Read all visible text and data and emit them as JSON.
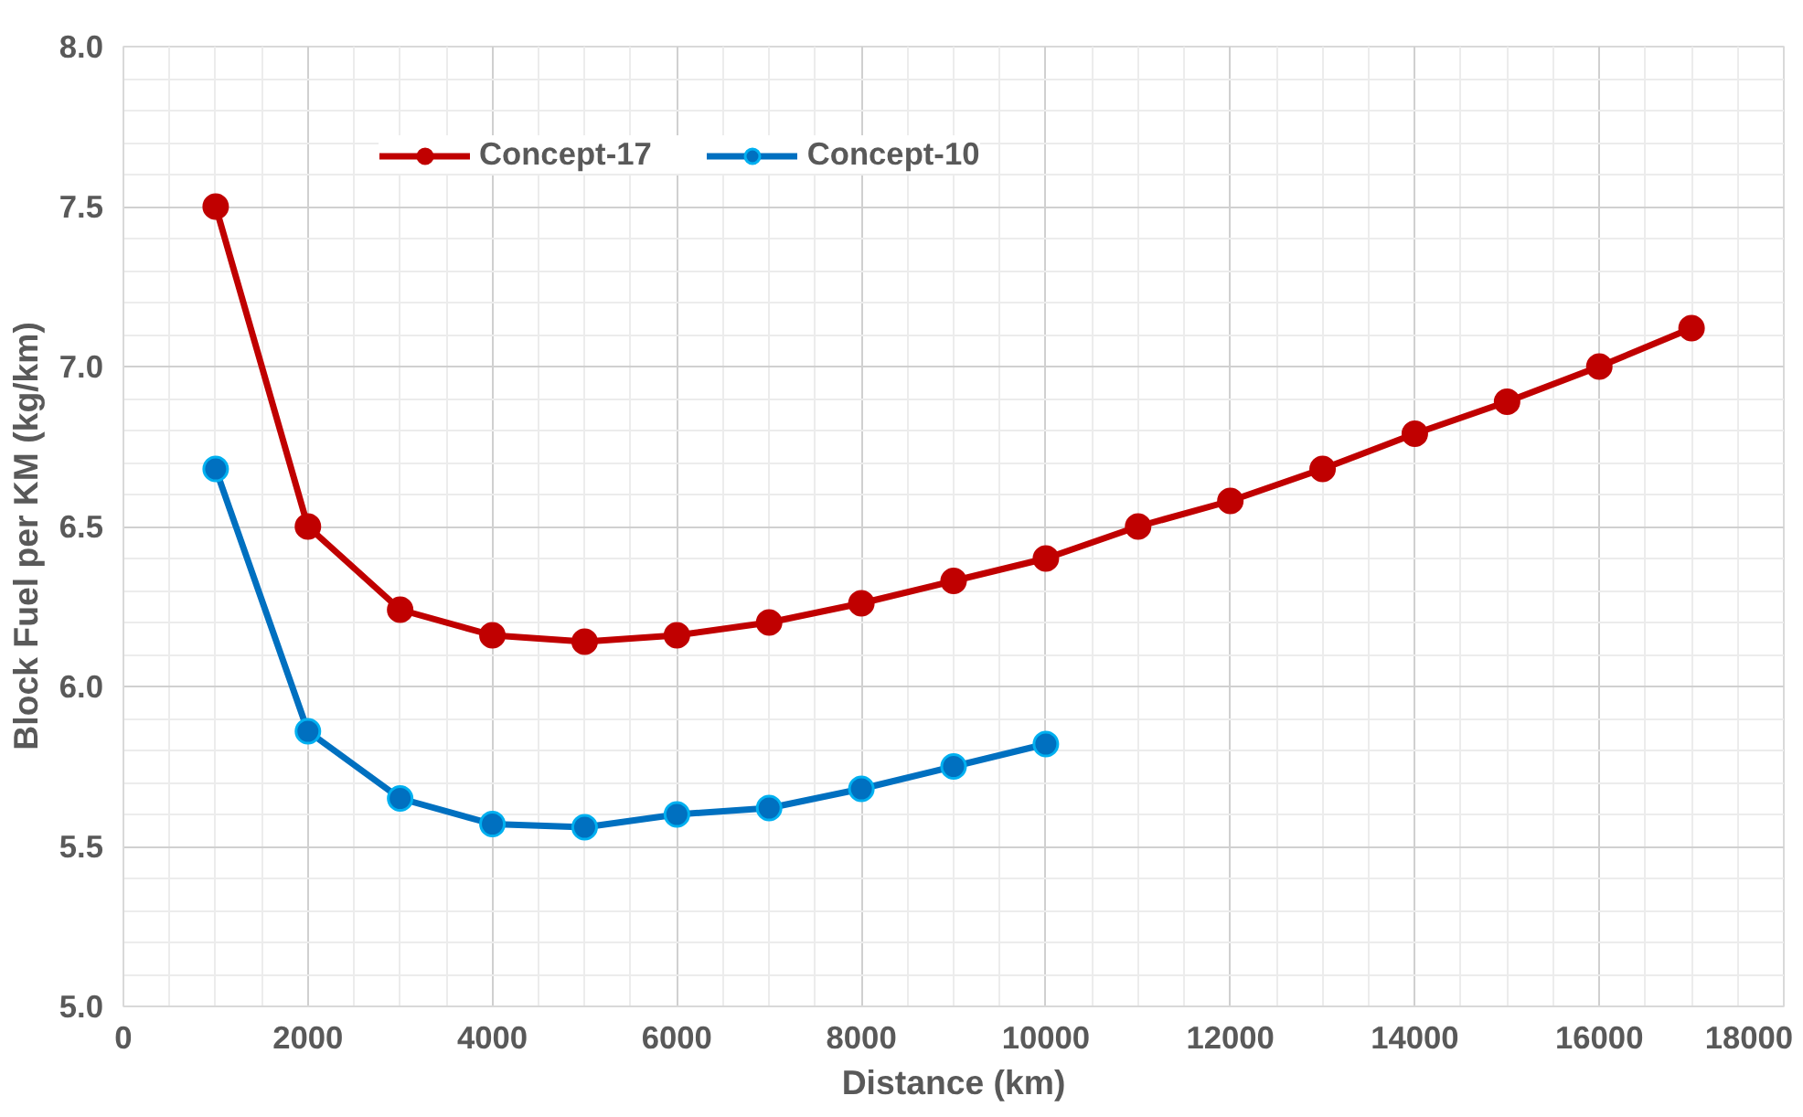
{
  "chart_data": {
    "type": "line",
    "xlabel": "Distance (km)",
    "ylabel": "Block Fuel per KM   (kg/km)",
    "x": [
      1000,
      2000,
      3000,
      4000,
      5000,
      6000,
      7000,
      8000,
      9000,
      10000,
      11000,
      12000,
      13000,
      14000,
      15000,
      16000,
      17000
    ],
    "series": [
      {
        "name": "Concept-17",
        "color": "#c00000",
        "values": [
          7.5,
          6.5,
          6.24,
          6.16,
          6.14,
          6.16,
          6.2,
          6.26,
          6.33,
          6.4,
          6.5,
          6.58,
          6.68,
          6.79,
          6.89,
          7.0,
          7.12
        ]
      },
      {
        "name": "Concept-10",
        "color": "#0070c0",
        "values": [
          6.68,
          5.86,
          5.65,
          5.57,
          5.56,
          5.6,
          5.62,
          5.68,
          5.75,
          5.82,
          null,
          null,
          null,
          null,
          null,
          null,
          null
        ]
      }
    ],
    "xlim": [
      0,
      18000
    ],
    "xticks": [
      0,
      2000,
      4000,
      6000,
      8000,
      10000,
      12000,
      14000,
      16000,
      18000
    ],
    "ylim": [
      5.0,
      8.0
    ],
    "yticks": [
      {
        "value": 5.0,
        "label": "5.0"
      },
      {
        "value": 5.5,
        "label": "5.5"
      },
      {
        "value": 6.0,
        "label": "6.0"
      },
      {
        "value": 6.5,
        "label": "6.5"
      },
      {
        "value": 7.0,
        "label": "7.0"
      },
      {
        "value": 7.5,
        "label": "7.5"
      },
      {
        "value": 8.0,
        "label": "8.0"
      }
    ],
    "grid": true,
    "legend": "top",
    "marker": "circle",
    "line_style": "solid"
  }
}
